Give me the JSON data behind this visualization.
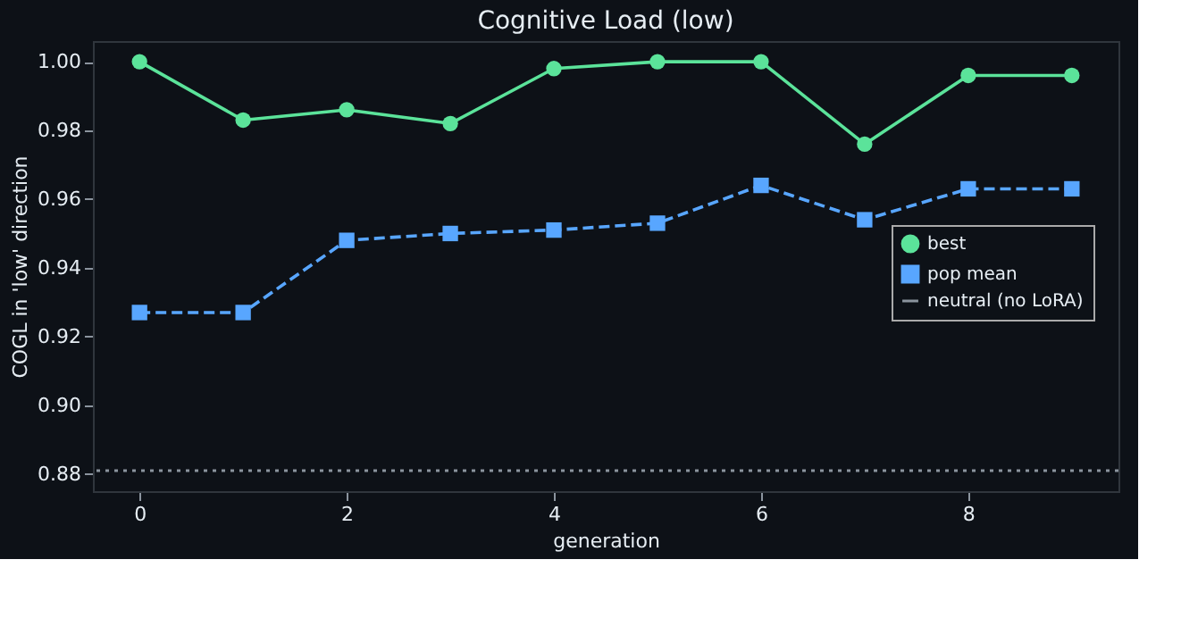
{
  "chart_data": {
    "type": "line",
    "title": "Cognitive Load (low)",
    "xlabel": "generation",
    "ylabel": "COGL in 'low' direction",
    "x": [
      0,
      1,
      2,
      3,
      4,
      5,
      6,
      7,
      8,
      9
    ],
    "series": [
      {
        "name": "best",
        "color": "#5be39a",
        "marker": "circle",
        "line_style": "solid",
        "values": [
          1.0,
          0.983,
          0.986,
          0.982,
          0.998,
          1.0,
          1.0,
          0.976,
          0.996,
          0.996
        ]
      },
      {
        "name": "pop mean",
        "color": "#58a6ff",
        "marker": "square",
        "line_style": "dashed",
        "values": [
          0.927,
          0.927,
          0.948,
          0.95,
          0.951,
          0.953,
          0.964,
          0.954,
          0.963,
          0.963
        ]
      }
    ],
    "ref_lines": [
      {
        "axis": "y",
        "value": 0.881,
        "label": "neutral (no LoRA)",
        "color": "#8b949e",
        "line_style": "dotted"
      }
    ],
    "xlim": [
      -0.45,
      9.45
    ],
    "xticks": [
      0,
      2,
      4,
      6,
      8
    ],
    "ylim": [
      0.875,
      1.006
    ],
    "yticks": [
      0.88,
      {
        "value": 0.9,
        "label": "0.90"
      },
      0.92,
      0.94,
      0.96,
      0.98,
      {
        "value": 1.0,
        "label": "1.00"
      }
    ],
    "grid": false,
    "legend": "right"
  }
}
